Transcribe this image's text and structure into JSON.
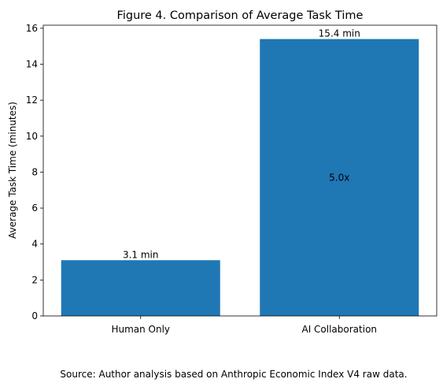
{
  "chart_data": {
    "type": "bar",
    "title": "Figure 4. Comparison of Average Task Time",
    "y_label": "Average Task Time (minutes)",
    "categories": [
      "Human Only",
      "AI Collaboration"
    ],
    "values": [
      3.1,
      15.4
    ],
    "value_labels": [
      "3.1 min",
      "15.4 min"
    ],
    "annotation": "5.0x",
    "color": "#1f77b4",
    "ylim": [
      0,
      16.17
    ],
    "yticks": [
      0,
      2,
      4,
      6,
      8,
      10,
      12,
      14,
      16
    ],
    "source": "Source: Author analysis based on Anthropic Economic Index V4 raw data."
  }
}
